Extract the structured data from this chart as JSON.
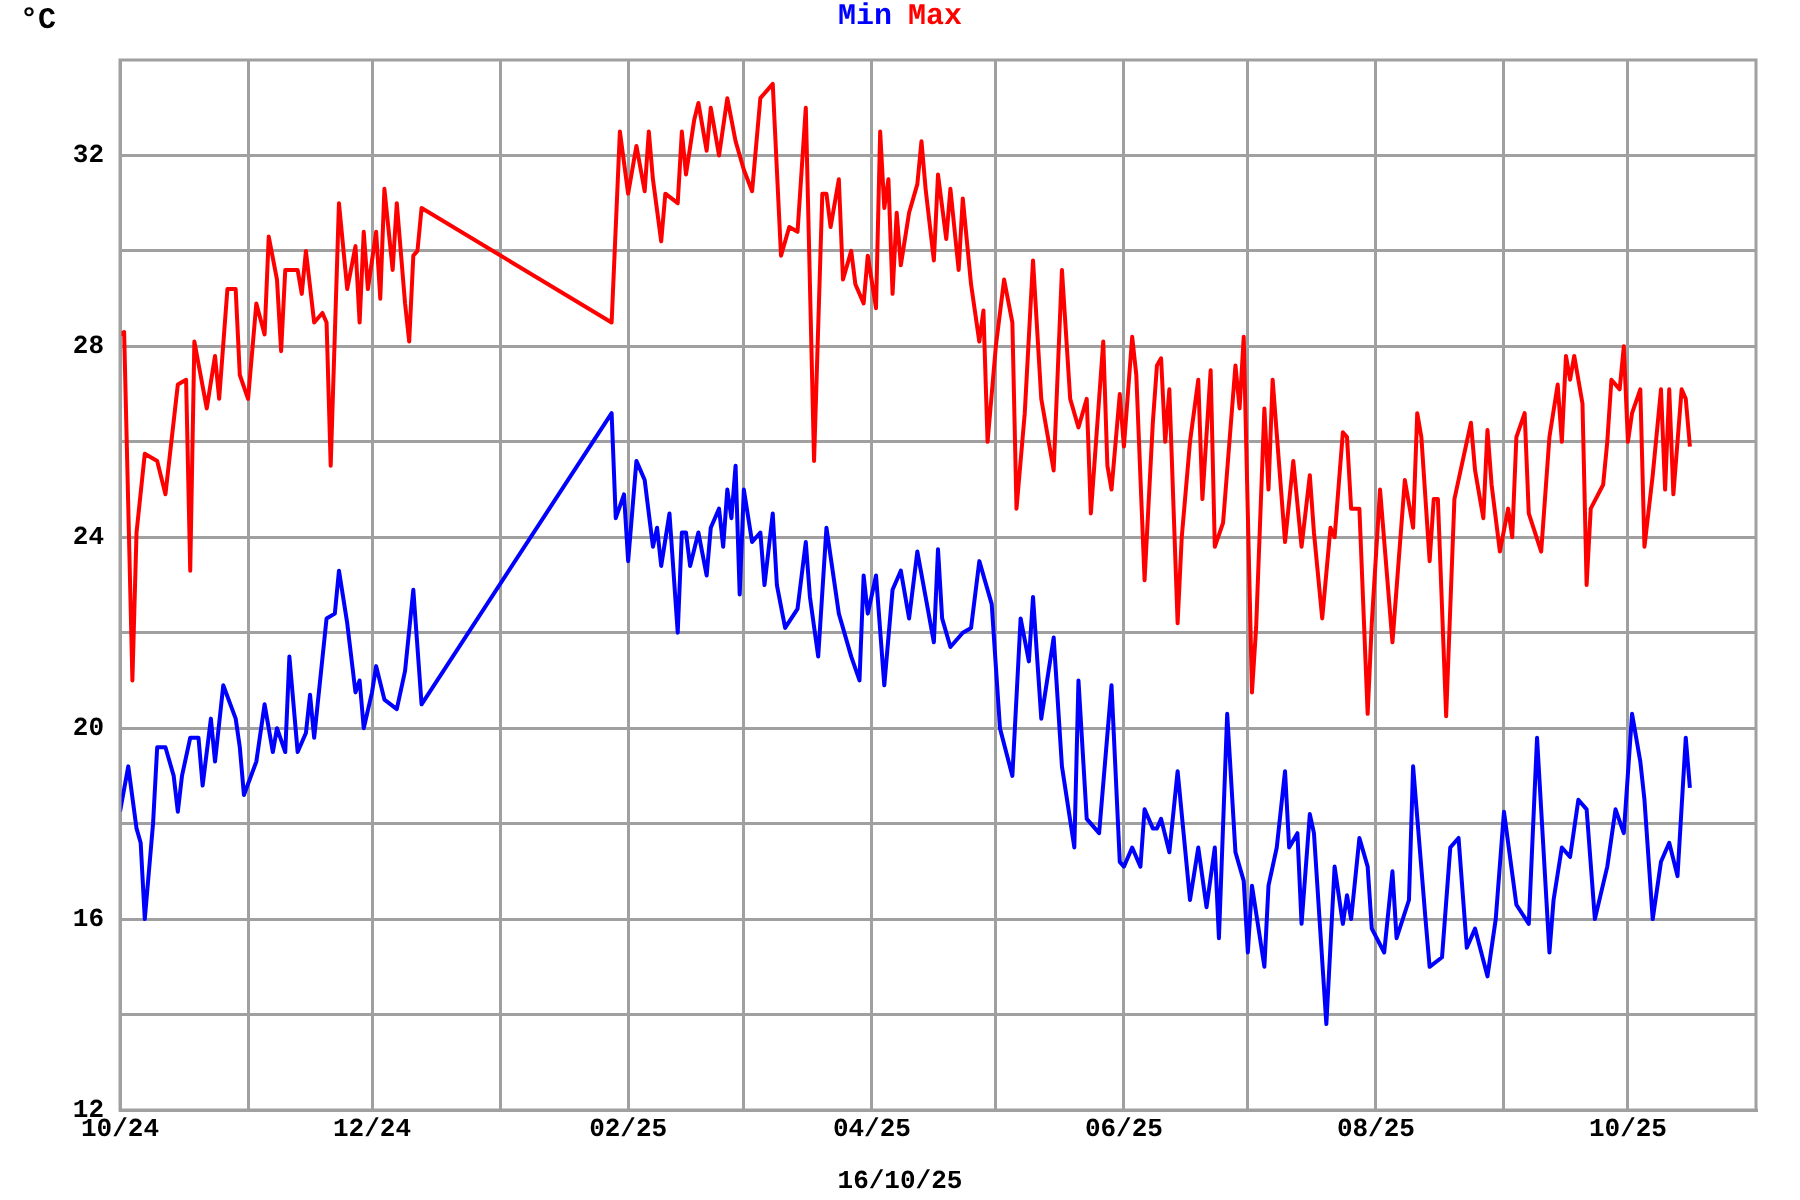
{
  "chart_data": {
    "type": "line",
    "ylabel": "°C",
    "legend": "top",
    "grid": true,
    "annotations": [
      "16/10/25"
    ],
    "xlim": [
      "2024-10-01",
      "2025-11-01"
    ],
    "xticks": [
      {
        "value": "2024-10-01",
        "label": "10/24"
      },
      {
        "value": "2024-11-01",
        "label": null
      },
      {
        "value": "2024-12-01",
        "label": "12/24"
      },
      {
        "value": "2025-01-01",
        "label": null
      },
      {
        "value": "2025-02-01",
        "label": "02/25"
      },
      {
        "value": "2025-03-01",
        "label": null
      },
      {
        "value": "2025-04-01",
        "label": "04/25"
      },
      {
        "value": "2025-05-01",
        "label": null
      },
      {
        "value": "2025-06-01",
        "label": "06/25"
      },
      {
        "value": "2025-07-01",
        "label": null
      },
      {
        "value": "2025-08-01",
        "label": "08/25"
      },
      {
        "value": "2025-09-01",
        "label": null
      },
      {
        "value": "2025-10-01",
        "label": "10/25"
      }
    ],
    "ylim": [
      12,
      34
    ],
    "yticks": [
      12,
      {
        "value": 14,
        "label": null
      },
      16,
      {
        "value": 18,
        "label": null
      },
      20,
      {
        "value": 22,
        "label": null
      },
      24,
      {
        "value": 26,
        "label": null
      },
      28,
      {
        "value": 30,
        "label": null
      },
      32
    ],
    "series": [
      {
        "name": "Min",
        "color": "#0000ff",
        "x": [
          "2024-10-01",
          "2024-10-03",
          "2024-10-05",
          "2024-10-06",
          "2024-10-07",
          "2024-10-09",
          "2024-10-10",
          "2024-10-12",
          "2024-10-14",
          "2024-10-15",
          "2024-10-16",
          "2024-10-18",
          "2024-10-20",
          "2024-10-21",
          "2024-10-23",
          "2024-10-24",
          "2024-10-26",
          "2024-10-29",
          "2024-10-30",
          "2024-10-31",
          "2024-11-03",
          "2024-11-05",
          "2024-11-07",
          "2024-11-08",
          "2024-11-10",
          "2024-11-11",
          "2024-11-13",
          "2024-11-15",
          "2024-11-16",
          "2024-11-17",
          "2024-11-20",
          "2024-11-22",
          "2024-11-23",
          "2024-11-25",
          "2024-11-27",
          "2024-11-28",
          "2024-11-29",
          "2024-12-01",
          "2024-12-02",
          "2024-12-04",
          "2024-12-07",
          "2024-12-09",
          "2024-12-11",
          "2024-12-13",
          "2025-01-28",
          "2025-01-29",
          "2025-01-31",
          "2025-02-01",
          "2025-02-03",
          "2025-02-05",
          "2025-02-07",
          "2025-02-08",
          "2025-02-09",
          "2025-02-11",
          "2025-02-13",
          "2025-02-14",
          "2025-02-15",
          "2025-02-16",
          "2025-02-18",
          "2025-02-20",
          "2025-02-21",
          "2025-02-23",
          "2025-02-24",
          "2025-02-25",
          "2025-02-26",
          "2025-02-27",
          "2025-02-28",
          "2025-03-01",
          "2025-03-03",
          "2025-03-05",
          "2025-03-06",
          "2025-03-08",
          "2025-03-09",
          "2025-03-11",
          "2025-03-14",
          "2025-03-16",
          "2025-03-17",
          "2025-03-19",
          "2025-03-21",
          "2025-03-24",
          "2025-03-27",
          "2025-03-29",
          "2025-03-30",
          "2025-03-31",
          "2025-04-02",
          "2025-04-04",
          "2025-04-06",
          "2025-04-08",
          "2025-04-10",
          "2025-04-12",
          "2025-04-14",
          "2025-04-16",
          "2025-04-17",
          "2025-04-18",
          "2025-04-20",
          "2025-04-23",
          "2025-04-25",
          "2025-04-27",
          "2025-04-30",
          "2025-05-02",
          "2025-05-05",
          "2025-05-07",
          "2025-05-09",
          "2025-05-10",
          "2025-05-12",
          "2025-05-15",
          "2025-05-17",
          "2025-05-20",
          "2025-05-21",
          "2025-05-23",
          "2025-05-26",
          "2025-05-29",
          "2025-05-31",
          "2025-06-01",
          "2025-06-03",
          "2025-06-05",
          "2025-06-06",
          "2025-06-08",
          "2025-06-09",
          "2025-06-10",
          "2025-06-12",
          "2025-06-14",
          "2025-06-17",
          "2025-06-19",
          "2025-06-21",
          "2025-06-23",
          "2025-06-24",
          "2025-06-26",
          "2025-06-28",
          "2025-06-30",
          "2025-07-01",
          "2025-07-02",
          "2025-07-05",
          "2025-07-06",
          "2025-07-08",
          "2025-07-10",
          "2025-07-11",
          "2025-07-13",
          "2025-07-14",
          "2025-07-16",
          "2025-07-17",
          "2025-07-20",
          "2025-07-22",
          "2025-07-24",
          "2025-07-25",
          "2025-07-26",
          "2025-07-28",
          "2025-07-30",
          "2025-07-31",
          "2025-08-03",
          "2025-08-05",
          "2025-08-06",
          "2025-08-09",
          "2025-08-10",
          "2025-08-13",
          "2025-08-14",
          "2025-08-17",
          "2025-08-19",
          "2025-08-21",
          "2025-08-23",
          "2025-08-25",
          "2025-08-28",
          "2025-08-30",
          "2025-09-01",
          "2025-09-04",
          "2025-09-07",
          "2025-09-09",
          "2025-09-12",
          "2025-09-13",
          "2025-09-15",
          "2025-09-17",
          "2025-09-19",
          "2025-09-21",
          "2025-09-23",
          "2025-09-26",
          "2025-09-28",
          "2025-09-30",
          "2025-10-02",
          "2025-10-04",
          "2025-10-05",
          "2025-10-07",
          "2025-10-09",
          "2025-10-11",
          "2025-10-13",
          "2025-10-15",
          "2025-10-16"
        ],
        "values": [
          18.25,
          19.2,
          17.9,
          17.6,
          16.0,
          18.0,
          19.6,
          19.6,
          19.0,
          18.25,
          19.0,
          19.8,
          19.8,
          18.8,
          20.2,
          19.3,
          20.9,
          20.2,
          19.6,
          18.6,
          19.3,
          20.5,
          19.5,
          20.0,
          19.5,
          21.5,
          19.5,
          19.9,
          20.7,
          19.8,
          22.3,
          22.4,
          23.3,
          22.2,
          20.75,
          21.0,
          20.0,
          20.75,
          21.3,
          20.6,
          20.4,
          21.2,
          22.9,
          20.5,
          26.6,
          24.4,
          24.9,
          23.5,
          25.6,
          25.2,
          23.8,
          24.2,
          23.4,
          24.5,
          22.0,
          24.1,
          24.1,
          23.4,
          24.1,
          23.2,
          24.2,
          24.6,
          23.8,
          25.0,
          24.4,
          25.5,
          22.8,
          25.0,
          23.9,
          24.1,
          23.0,
          24.5,
          23.0,
          22.1,
          22.5,
          23.9,
          22.75,
          21.5,
          24.2,
          22.4,
          21.5,
          21.0,
          23.2,
          22.4,
          23.2,
          20.9,
          22.9,
          23.3,
          22.3,
          23.7,
          22.75,
          21.8,
          23.75,
          22.3,
          21.7,
          22.0,
          22.1,
          23.5,
          22.6,
          20.0,
          19.0,
          22.3,
          21.4,
          22.75,
          20.2,
          21.9,
          19.2,
          17.5,
          21.0,
          18.1,
          17.8,
          20.9,
          17.2,
          17.1,
          17.5,
          17.1,
          18.3,
          17.9,
          17.9,
          18.1,
          17.4,
          19.1,
          16.4,
          17.5,
          16.25,
          17.5,
          15.6,
          20.3,
          17.4,
          16.8,
          15.3,
          16.7,
          15.0,
          16.7,
          17.5,
          19.1,
          17.5,
          17.8,
          15.9,
          18.2,
          17.8,
          13.8,
          17.1,
          15.9,
          16.5,
          16.0,
          17.7,
          17.1,
          15.8,
          15.3,
          17.0,
          15.6,
          16.4,
          19.2,
          16.0,
          15.0,
          15.2,
          17.5,
          17.7,
          15.4,
          15.8,
          14.8,
          16.0,
          18.25,
          16.3,
          15.9,
          19.8,
          15.3,
          16.4,
          17.5,
          17.3,
          18.5,
          18.3,
          16.0,
          17.1,
          18.3,
          17.8,
          20.3,
          19.3,
          18.5,
          16.0,
          17.2,
          17.6,
          16.9,
          19.8,
          18.75
        ]
      },
      {
        "name": "Max",
        "color": "#ff0000",
        "x": [
          "2024-10-01",
          "2024-10-02",
          "2024-10-04",
          "2024-10-05",
          "2024-10-07",
          "2024-10-10",
          "2024-10-12",
          "2024-10-15",
          "2024-10-17",
          "2024-10-18",
          "2024-10-19",
          "2024-10-22",
          "2024-10-24",
          "2024-10-25",
          "2024-10-27",
          "2024-10-29",
          "2024-10-30",
          "2024-11-01",
          "2024-11-03",
          "2024-11-05",
          "2024-11-06",
          "2024-11-08",
          "2024-11-09",
          "2024-11-10",
          "2024-11-13",
          "2024-11-14",
          "2024-11-15",
          "2024-11-17",
          "2024-11-19",
          "2024-11-20",
          "2024-11-21",
          "2024-11-23",
          "2024-11-25",
          "2024-11-27",
          "2024-11-28",
          "2024-11-29",
          "2024-11-30",
          "2024-12-02",
          "2024-12-03",
          "2024-12-04",
          "2024-12-06",
          "2024-12-07",
          "2024-12-09",
          "2024-12-10",
          "2024-12-11",
          "2024-12-12",
          "2024-12-13",
          "2025-01-28",
          "2025-01-30",
          "2025-02-01",
          "2025-02-03",
          "2025-02-05",
          "2025-02-06",
          "2025-02-07",
          "2025-02-09",
          "2025-02-10",
          "2025-02-13",
          "2025-02-14",
          "2025-02-15",
          "2025-02-17",
          "2025-02-18",
          "2025-02-20",
          "2025-02-21",
          "2025-02-23",
          "2025-02-25",
          "2025-02-27",
          "2025-03-01",
          "2025-03-03",
          "2025-03-05",
          "2025-03-08",
          "2025-03-10",
          "2025-03-12",
          "2025-03-14",
          "2025-03-16",
          "2025-03-18",
          "2025-03-20",
          "2025-03-21",
          "2025-03-22",
          "2025-03-24",
          "2025-03-25",
          "2025-03-27",
          "2025-03-28",
          "2025-03-30",
          "2025-03-31",
          "2025-04-02",
          "2025-04-03",
          "2025-04-04",
          "2025-04-05",
          "2025-04-06",
          "2025-04-07",
          "2025-04-08",
          "2025-04-10",
          "2025-04-12",
          "2025-04-13",
          "2025-04-14",
          "2025-04-16",
          "2025-04-17",
          "2025-04-19",
          "2025-04-20",
          "2025-04-22",
          "2025-04-23",
          "2025-04-25",
          "2025-04-27",
          "2025-04-28",
          "2025-04-29",
          "2025-05-01",
          "2025-05-03",
          "2025-05-05",
          "2025-05-06",
          "2025-05-08",
          "2025-05-10",
          "2025-05-12",
          "2025-05-15",
          "2025-05-16",
          "2025-05-17",
          "2025-05-19",
          "2025-05-21",
          "2025-05-23",
          "2025-05-24",
          "2025-05-27",
          "2025-05-28",
          "2025-05-29",
          "2025-05-31",
          "2025-06-01",
          "2025-06-03",
          "2025-06-04",
          "2025-06-06",
          "2025-06-08",
          "2025-06-09",
          "2025-06-10",
          "2025-06-11",
          "2025-06-12",
          "2025-06-14",
          "2025-06-15",
          "2025-06-17",
          "2025-06-19",
          "2025-06-20",
          "2025-06-22",
          "2025-06-23",
          "2025-06-25",
          "2025-06-28",
          "2025-06-29",
          "2025-06-30",
          "2025-07-02",
          "2025-07-03",
          "2025-07-05",
          "2025-07-06",
          "2025-07-07",
          "2025-07-10",
          "2025-07-12",
          "2025-07-14",
          "2025-07-16",
          "2025-07-17",
          "2025-07-19",
          "2025-07-21",
          "2025-07-22",
          "2025-07-24",
          "2025-07-25",
          "2025-07-26",
          "2025-07-28",
          "2025-07-30",
          "2025-07-31",
          "2025-08-02",
          "2025-08-05",
          "2025-08-08",
          "2025-08-10",
          "2025-08-11",
          "2025-08-12",
          "2025-08-14",
          "2025-08-15",
          "2025-08-16",
          "2025-08-18",
          "2025-08-20",
          "2025-08-22",
          "2025-08-24",
          "2025-08-25",
          "2025-08-27",
          "2025-08-28",
          "2025-08-29",
          "2025-08-31",
          "2025-09-02",
          "2025-09-03",
          "2025-09-04",
          "2025-09-06",
          "2025-09-07",
          "2025-09-10",
          "2025-09-12",
          "2025-09-14",
          "2025-09-15",
          "2025-09-16",
          "2025-09-17",
          "2025-09-18",
          "2025-09-20",
          "2025-09-21",
          "2025-09-22",
          "2025-09-25",
          "2025-09-26",
          "2025-09-27",
          "2025-09-29",
          "2025-09-30",
          "2025-10-01",
          "2025-10-02",
          "2025-10-04",
          "2025-10-05",
          "2025-10-07",
          "2025-10-09",
          "2025-10-10",
          "2025-10-11",
          "2025-10-12",
          "2025-10-14",
          "2025-10-15",
          "2025-10-16"
        ],
        "values": [
          28.25,
          28.3,
          21.0,
          24.1,
          25.75,
          25.6,
          24.9,
          27.2,
          27.3,
          23.3,
          28.1,
          26.7,
          27.8,
          26.9,
          29.2,
          29.2,
          27.4,
          26.9,
          28.9,
          28.25,
          30.3,
          29.4,
          27.9,
          29.6,
          29.6,
          29.1,
          30.0,
          28.5,
          28.7,
          28.5,
          25.5,
          31.0,
          29.2,
          30.1,
          28.5,
          30.4,
          29.2,
          30.4,
          29.0,
          31.3,
          29.6,
          31.0,
          28.9,
          28.1,
          29.9,
          30.0,
          30.9,
          28.5,
          32.5,
          31.2,
          32.2,
          31.25,
          32.5,
          31.5,
          30.2,
          31.2,
          31.0,
          32.5,
          31.6,
          32.75,
          33.1,
          32.1,
          33.0,
          32.0,
          33.2,
          32.3,
          31.7,
          31.25,
          33.2,
          33.5,
          29.9,
          30.5,
          30.4,
          33.0,
          25.6,
          31.2,
          31.2,
          30.5,
          31.5,
          29.4,
          30.0,
          29.3,
          28.9,
          29.9,
          28.8,
          32.5,
          30.9,
          31.5,
          29.1,
          30.8,
          29.7,
          30.8,
          31.4,
          32.3,
          31.3,
          29.8,
          31.6,
          30.25,
          31.3,
          29.6,
          31.1,
          29.3,
          28.1,
          28.75,
          26.0,
          28.0,
          29.4,
          28.5,
          24.6,
          26.6,
          29.8,
          26.9,
          25.4,
          27.5,
          29.6,
          26.9,
          26.3,
          26.9,
          24.5,
          28.1,
          25.5,
          25.0,
          27.0,
          25.9,
          28.2,
          27.4,
          23.1,
          26.4,
          27.6,
          27.75,
          26.0,
          27.1,
          22.2,
          24.0,
          26.0,
          27.3,
          24.8,
          27.5,
          23.8,
          24.3,
          27.6,
          26.7,
          28.2,
          20.75,
          22.1,
          26.7,
          25.0,
          27.3,
          23.9,
          25.6,
          23.8,
          25.3,
          24.1,
          22.3,
          24.2,
          24.0,
          26.2,
          26.1,
          24.6,
          24.6,
          20.3,
          22.2,
          25.0,
          21.8,
          25.2,
          24.2,
          26.6,
          26.1,
          23.5,
          24.8,
          24.8,
          20.25,
          24.8,
          25.6,
          26.4,
          25.4,
          24.4,
          26.25,
          25.1,
          23.7,
          24.6,
          24.0,
          26.1,
          26.6,
          24.5,
          23.7,
          26.1,
          27.2,
          26.0,
          27.8,
          27.3,
          27.8,
          26.8,
          23.0,
          24.6,
          25.1,
          26.0,
          27.3,
          27.1,
          28.0,
          26.0,
          26.6,
          27.1,
          23.8,
          25.3,
          27.1,
          25.0,
          27.1,
          24.9,
          27.1,
          26.9,
          25.9
        ]
      }
    ]
  }
}
